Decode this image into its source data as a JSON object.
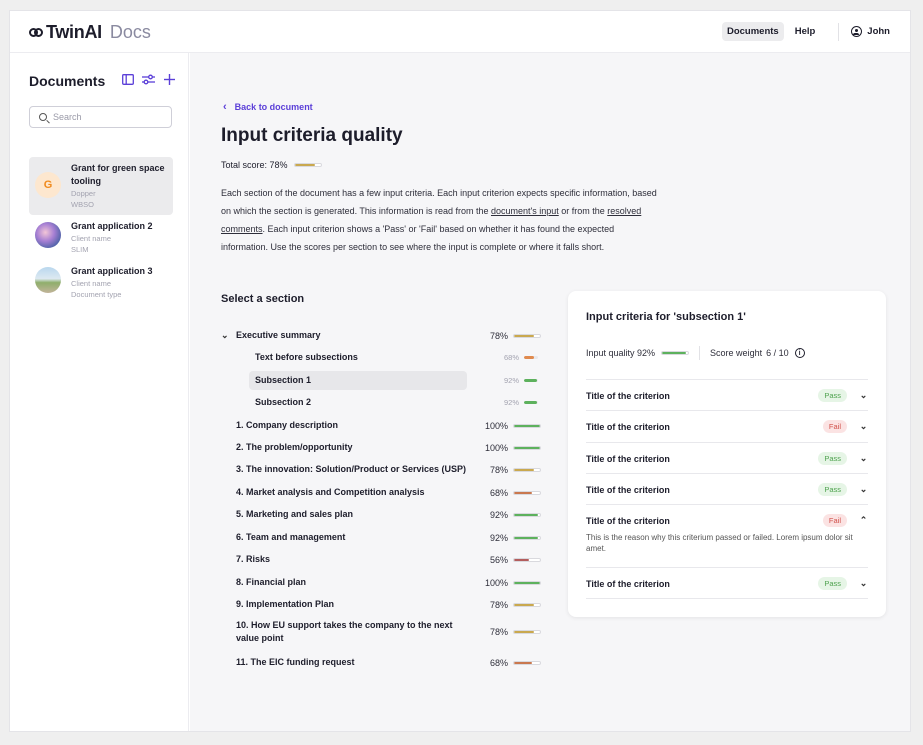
{
  "header": {
    "logo_name": "TwinAI",
    "logo_docs": "Docs",
    "nav_documents": "Documents",
    "nav_help": "Help",
    "user_name": "John"
  },
  "sidebar": {
    "title": "Documents",
    "search_placeholder": "Search",
    "items": [
      {
        "name": "Grant for green space tooling",
        "line1": "Dopper",
        "line2": "WBSO",
        "avatar": "G"
      },
      {
        "name": "Grant application 2",
        "line1": "Client name",
        "line2": "SLIM"
      },
      {
        "name": "Grant application 3",
        "line1": "Client name",
        "line2": "Document type"
      }
    ]
  },
  "main": {
    "back_label": "Back to document",
    "title": "Input criteria quality",
    "total_label": "Total score: 78%",
    "total_score": 0.78,
    "intro_1": "Each section of the document has a few input criteria. Each input criterion expects specific information, based on which the section is generated. This information is read from the ",
    "intro_link_1": "document's input",
    "intro_2": " or from the ",
    "intro_link_2": "resolved comments",
    "intro_3": ". Each input criterion shows a 'Pass' or 'Fail' based on whether it has found the expected information. Use the scores per section to see where the input is complete or where it falls short.",
    "select_title": "Select a section",
    "sections": [
      {
        "label": "Executive summary",
        "pct": "78%",
        "value": 0.78,
        "color": "#c9a84f"
      },
      {
        "label": "Text before subsections",
        "pct": "68%",
        "value": 0.68,
        "color": "#e08a4e"
      },
      {
        "label": "Subsection 1",
        "pct": "92%",
        "value": 0.92,
        "color": "#5db15d"
      },
      {
        "label": "Subsection 2",
        "pct": "92%",
        "value": 0.92,
        "color": "#5db15d"
      },
      {
        "label": "1. Company description",
        "pct": "100%",
        "value": 1.0,
        "color": "#5db15d"
      },
      {
        "label": "2. The problem/opportunity",
        "pct": "100%",
        "value": 1.0,
        "color": "#5db15d"
      },
      {
        "label": "3. The innovation: Solution/Product or Services (USP)",
        "pct": "78%",
        "value": 0.78,
        "color": "#c9a84f"
      },
      {
        "label": "4. Market analysis and Competition analysis",
        "pct": "68%",
        "value": 0.68,
        "color": "#c9784f"
      },
      {
        "label": "5. Marketing and sales plan",
        "pct": "92%",
        "value": 0.92,
        "color": "#5db15d"
      },
      {
        "label": "6. Team and management",
        "pct": "92%",
        "value": 0.92,
        "color": "#5db15d"
      },
      {
        "label": "7. Risks",
        "pct": "56%",
        "value": 0.56,
        "color": "#b35d5d"
      },
      {
        "label": "8. Financial plan",
        "pct": "100%",
        "value": 1.0,
        "color": "#5db15d"
      },
      {
        "label": "9. Implementation Plan",
        "pct": "78%",
        "value": 0.78,
        "color": "#c9a84f"
      },
      {
        "label": "10. How EU support takes the company to the next value point",
        "pct": "78%",
        "value": 0.78,
        "color": "#c9a84f"
      },
      {
        "label": "11. The EIC funding request",
        "pct": "68%",
        "value": 0.68,
        "color": "#c9784f"
      }
    ]
  },
  "panel": {
    "title": "Input criteria for 'subsection 1'",
    "quality_label": "Input quality 92%",
    "quality_value": 0.92,
    "weight_label": "Score weight",
    "weight_value": "6 / 10",
    "criteria": [
      {
        "title": "Title of the criterion",
        "status": "Pass"
      },
      {
        "title": "Title of the criterion",
        "status": "Fail"
      },
      {
        "title": "Title of the criterion",
        "status": "Pass"
      },
      {
        "title": "Title of the criterion",
        "status": "Pass"
      },
      {
        "title": "Title of the criterion",
        "status": "Fail",
        "reason": "This is the reason why this criterium passed or failed. Lorem ipsum dolor sit amet."
      },
      {
        "title": "Title of the criterion",
        "status": "Pass"
      }
    ]
  },
  "colors": {
    "accent": "#5b3fd8",
    "pass": "#5db15d",
    "warn": "#c9a84f",
    "fail": "#b35d5d"
  }
}
